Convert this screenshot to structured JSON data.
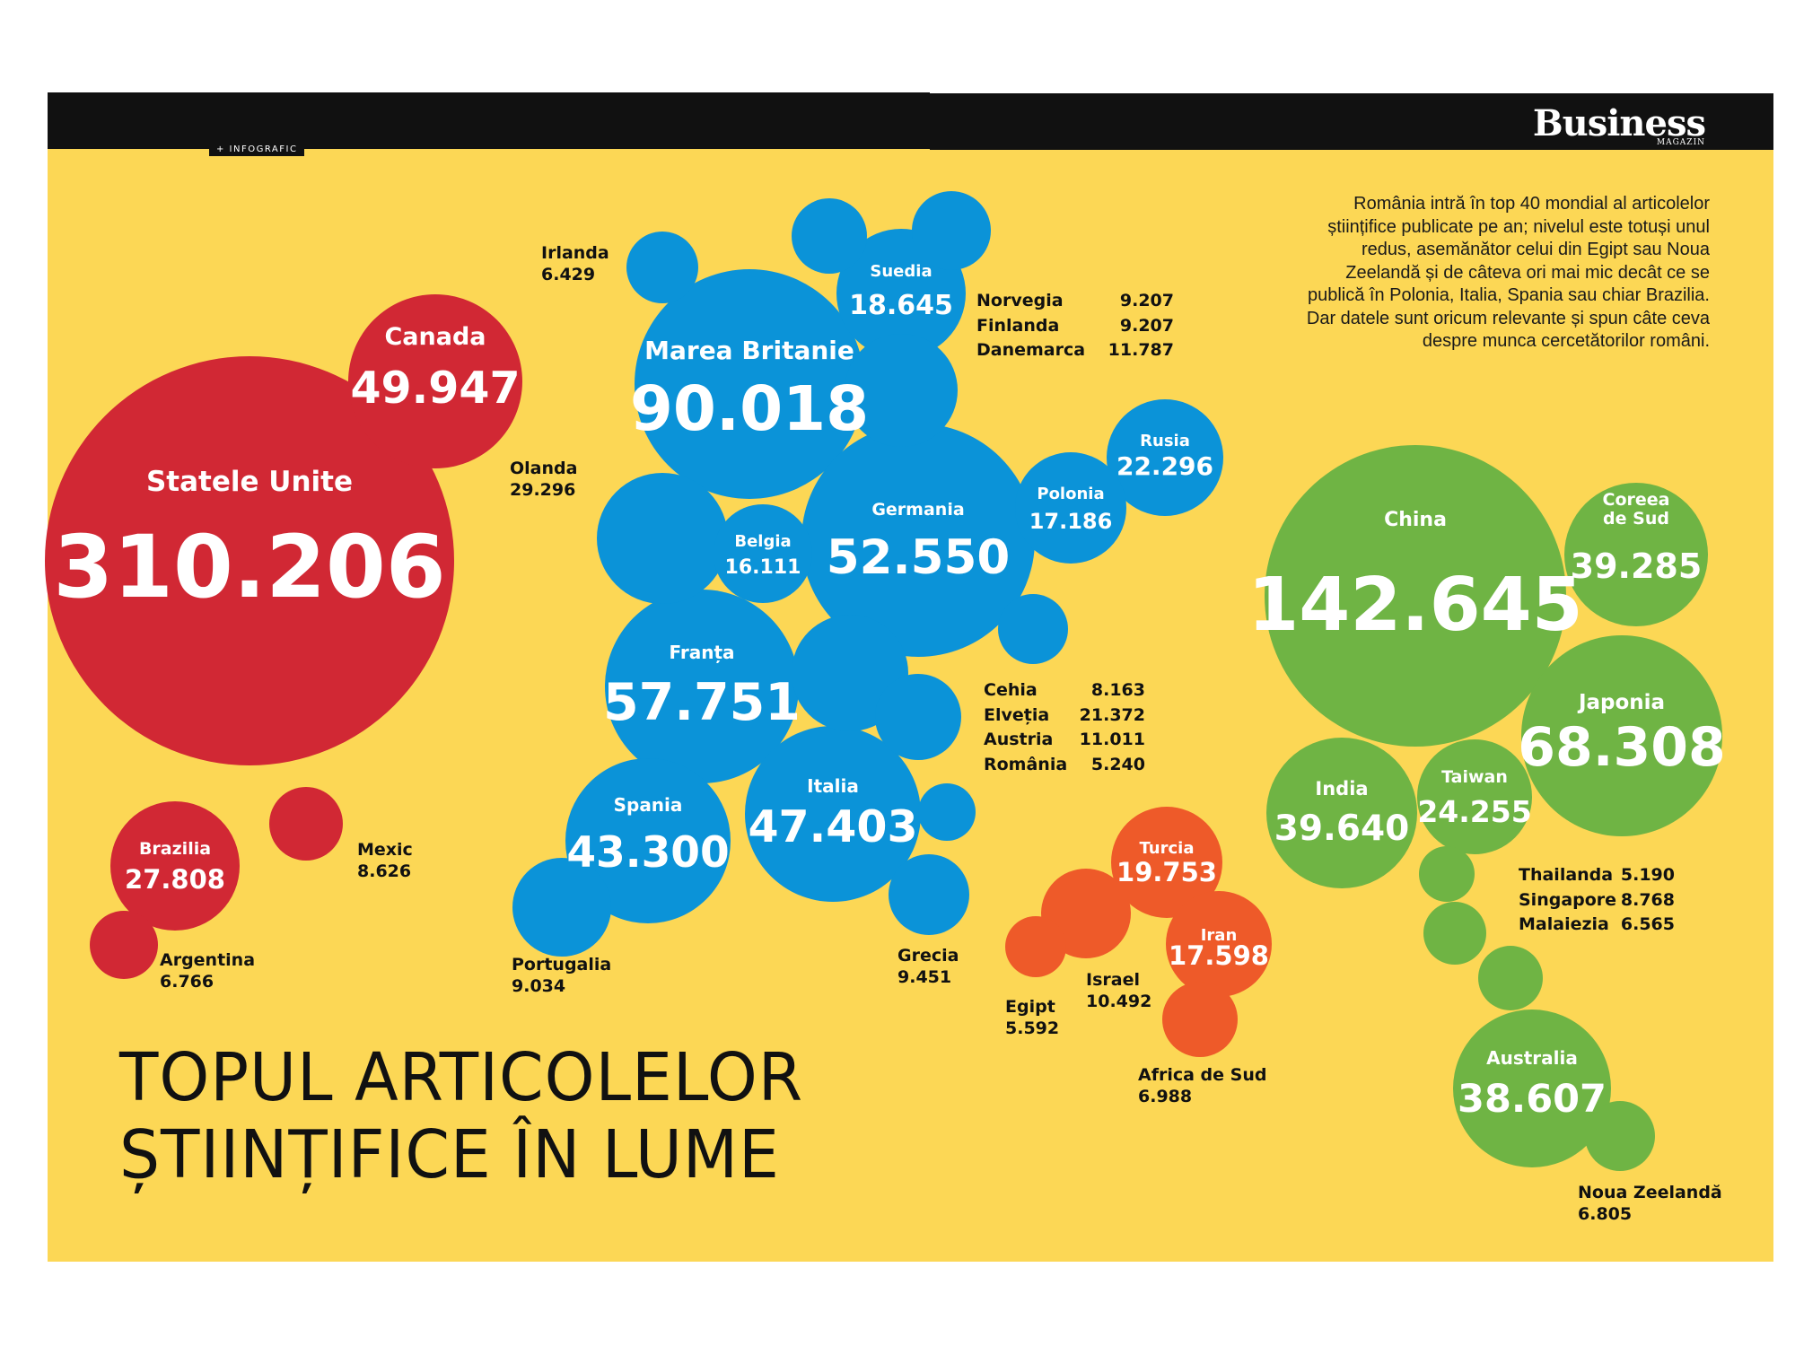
{
  "header": {
    "section_tag": "+ INFOGRAFIC",
    "brand": "Business",
    "brand_sub": "MAGAZIN"
  },
  "intro": "România intră în top 40 mondial al articolelor științifice publicate pe an; nivelul este totuși unul redus, asemănător celui din Egipt sau Noua Zeelandă și de câteva ori mai mic decât ce se publică în Polonia, Italia, Spania sau chiar Brazilia. Dar datele sunt oricum relevante și spun câte ceva despre munca cercetătorilor români.",
  "title": {
    "line1": "TOPUL ARTICOLELOR",
    "line2": "ȘTIINȚIFICE ÎN LUME"
  },
  "colors": {
    "background": "#fcd755",
    "bar": "#111111",
    "americas": "#d12834",
    "europe": "#0b93d8",
    "middle_east_africa": "#ee5a29",
    "asia_oceania": "#6fb444"
  },
  "chart_data": {
    "type": "bubble",
    "title": "TOPUL ARTICOLELOR ȘTIINȚIFICE ÎN LUME",
    "series": [
      {
        "name": "",
        "group": "americas",
        "points": [
          {
            "country": "Statele Unite",
            "label": "310.206",
            "value": 310206
          },
          {
            "country": "Canada",
            "label": "49.947",
            "value": 49947
          },
          {
            "country": "Brazilia",
            "label": "27.808",
            "value": 27808
          },
          {
            "country": "Mexic",
            "label": "8.626",
            "value": 8626
          },
          {
            "country": "Argentina",
            "label": "6.766",
            "value": 6766
          }
        ]
      },
      {
        "name": "",
        "group": "europe",
        "points": [
          {
            "country": "Marea Britanie",
            "label": "90.018",
            "value": 90018
          },
          {
            "country": "Franța",
            "label": "57.751",
            "value": 57751
          },
          {
            "country": "Germania",
            "label": "52.550",
            "value": 52550
          },
          {
            "country": "Italia",
            "label": "47.403",
            "value": 47403
          },
          {
            "country": "Spania",
            "label": "43.300",
            "value": 43300
          },
          {
            "country": "Olanda",
            "label": "29.296",
            "value": 29296
          },
          {
            "country": "Rusia",
            "label": "22.296",
            "value": 22296
          },
          {
            "country": "Elveția",
            "label": "21.372",
            "value": 21372
          },
          {
            "country": "Suedia",
            "label": "18.645",
            "value": 18645
          },
          {
            "country": "Polonia",
            "label": "17.186",
            "value": 17186
          },
          {
            "country": "Belgia",
            "label": "16.111",
            "value": 16111
          },
          {
            "country": "Danemarca",
            "label": "11.787",
            "value": 11787
          },
          {
            "country": "Austria",
            "label": "11.011",
            "value": 11011
          },
          {
            "country": "Grecia",
            "label": "9.451",
            "value": 9451
          },
          {
            "country": "Norvegia",
            "label": "9.207",
            "value": 9207
          },
          {
            "country": "Finlanda",
            "label": "9.207",
            "value": 9207
          },
          {
            "country": "Portugalia",
            "label": "9.034",
            "value": 9034
          },
          {
            "country": "Cehia",
            "label": "8.163",
            "value": 8163
          },
          {
            "country": "Irlanda",
            "label": "6.429",
            "value": 6429
          },
          {
            "country": "România",
            "label": "5.240",
            "value": 5240
          }
        ]
      },
      {
        "name": "",
        "group": "middle_east_africa",
        "points": [
          {
            "country": "Turcia",
            "label": "19.753",
            "value": 19753
          },
          {
            "country": "Iran",
            "label": "17.598",
            "value": 17598
          },
          {
            "country": "Israel",
            "label": "10.492",
            "value": 10492
          },
          {
            "country": "Africa de Sud",
            "label": "6.988",
            "value": 6988
          },
          {
            "country": "Egipt",
            "label": "5.592",
            "value": 5592
          }
        ]
      },
      {
        "name": "",
        "group": "asia_oceania",
        "points": [
          {
            "country": "China",
            "label": "142.645",
            "value": 142645
          },
          {
            "country": "Japonia",
            "label": "68.308",
            "value": 68308
          },
          {
            "country": "India",
            "label": "39.640",
            "value": 39640
          },
          {
            "country": "Coreea de Sud",
            "label": "39.285",
            "value": 39285
          },
          {
            "country": "Australia",
            "label": "38.607",
            "value": 38607
          },
          {
            "country": "Taiwan",
            "label": "24.255",
            "value": 24255
          },
          {
            "country": "Singapore",
            "label": "8.768",
            "value": 8768
          },
          {
            "country": "Noua Zeelandă",
            "label": "6.805",
            "value": 6805
          },
          {
            "country": "Malaiezia",
            "label": "6.565",
            "value": 6565
          },
          {
            "country": "Thailanda",
            "label": "5.190",
            "value": 5190
          }
        ]
      }
    ],
    "inside_labels": {
      "Statele Unite": [
        "Statele Unite"
      ],
      "Canada": [
        "Canada"
      ],
      "Brazilia": [
        "Brazilia"
      ],
      "Marea Britanie": [
        "Marea Britanie"
      ],
      "Franța": [
        "Franța"
      ],
      "Germania": [
        "Germania"
      ],
      "Italia": [
        "Italia"
      ],
      "Spania": [
        "Spania"
      ],
      "Rusia": [
        "Rusia"
      ],
      "Suedia": [
        "Suedia"
      ],
      "Polonia": [
        "Polonia"
      ],
      "Belgia": [
        "Belgia"
      ],
      "Turcia": [
        "Turcia"
      ],
      "Iran": [
        "Iran"
      ],
      "China": [
        "China"
      ],
      "Japonia": [
        "Japonia"
      ],
      "India": [
        "India"
      ],
      "Coreea de Sud": [
        "Coreea",
        "de Sud"
      ],
      "Australia": [
        "Australia"
      ],
      "Taiwan": [
        "Taiwan"
      ]
    },
    "outside_labels": {
      "Mexic": "Mexic",
      "Argentina": "Argentina",
      "Irlanda": "Irlanda",
      "Olanda": "Olanda",
      "Portugalia": "Portugalia",
      "Grecia": "Grecia",
      "Israel": "Israel",
      "Egipt": "Egipt",
      "Africa de Sud": "Africa de Sud",
      "Noua Zeelandă": "Noua Zeelandă"
    },
    "grouped_lists": [
      [
        "Norvegia",
        "Finlanda",
        "Danemarca"
      ],
      [
        "Cehia",
        "Elveția",
        "Austria",
        "România"
      ],
      [
        "Thailanda",
        "Singapore",
        "Malaiezia"
      ]
    ]
  }
}
